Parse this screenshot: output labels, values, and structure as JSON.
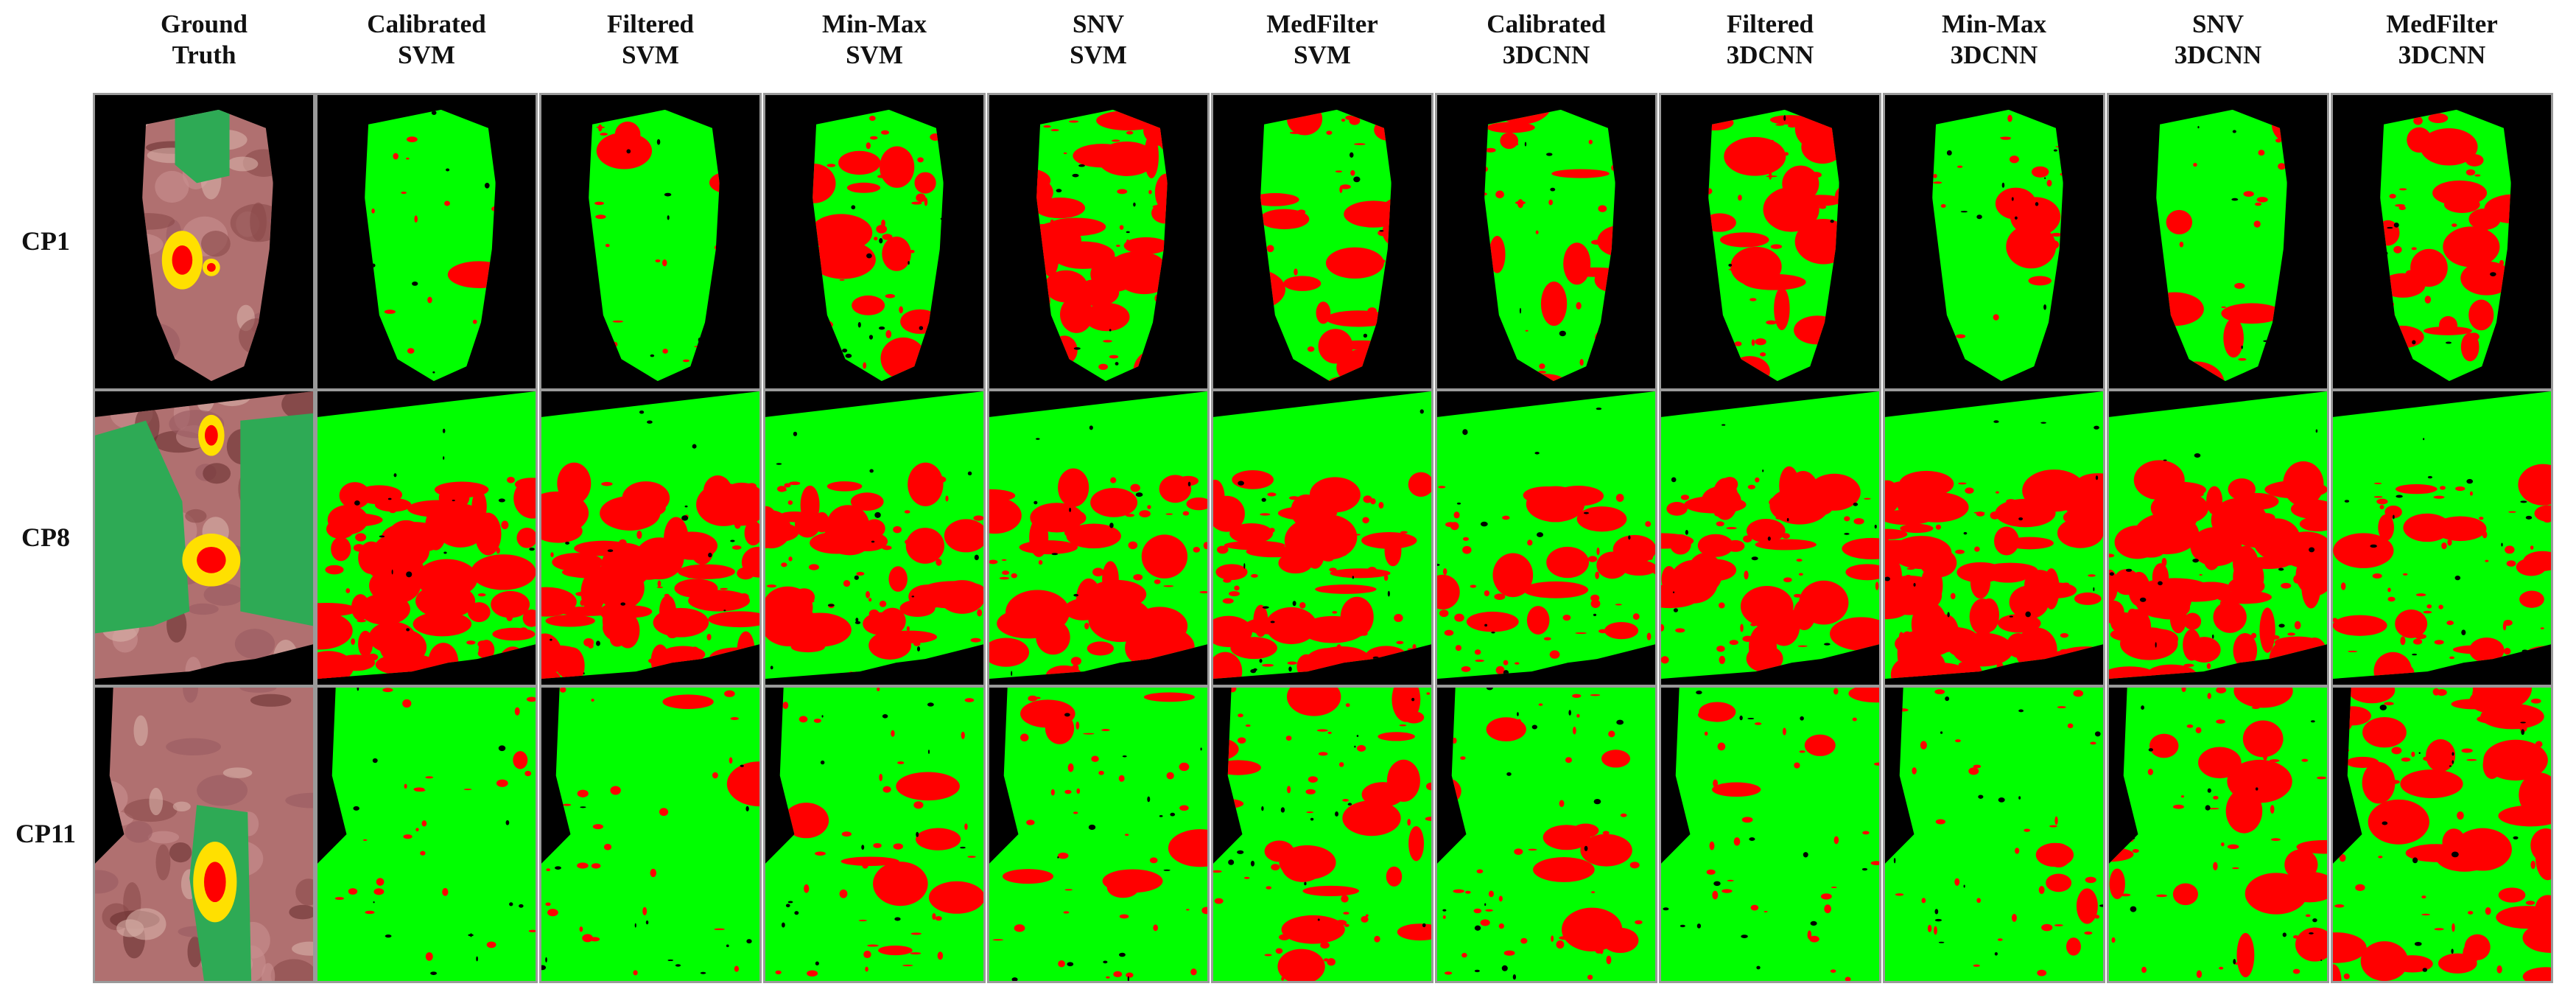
{
  "columns": [
    {
      "line1": "Ground",
      "line2": "Truth"
    },
    {
      "line1": "Calibrated",
      "line2": "SVM"
    },
    {
      "line1": "Filtered",
      "line2": "SVM"
    },
    {
      "line1": "Min-Max",
      "line2": "SVM"
    },
    {
      "line1": "SNV",
      "line2": "SVM"
    },
    {
      "line1": "MedFilter",
      "line2": "SVM"
    },
    {
      "line1": "Calibrated",
      "line2": "3DCNN"
    },
    {
      "line1": "Filtered",
      "line2": "3DCNN"
    },
    {
      "line1": "Min-Max",
      "line2": "3DCNN"
    },
    {
      "line1": "SNV",
      "line2": "3DCNN"
    },
    {
      "line1": "MedFilter",
      "line2": "3DCNN"
    }
  ],
  "rows": [
    {
      "label": "CP1"
    },
    {
      "label": "CP8"
    },
    {
      "label": "CP11"
    }
  ],
  "colors": {
    "healthy": "#00ff00",
    "tumor": "#ff0000",
    "background": "#000000",
    "ground_truth_region": "#2eaa55",
    "ground_truth_outline": "#ffe000",
    "tissue_photo": "#b07070"
  }
}
